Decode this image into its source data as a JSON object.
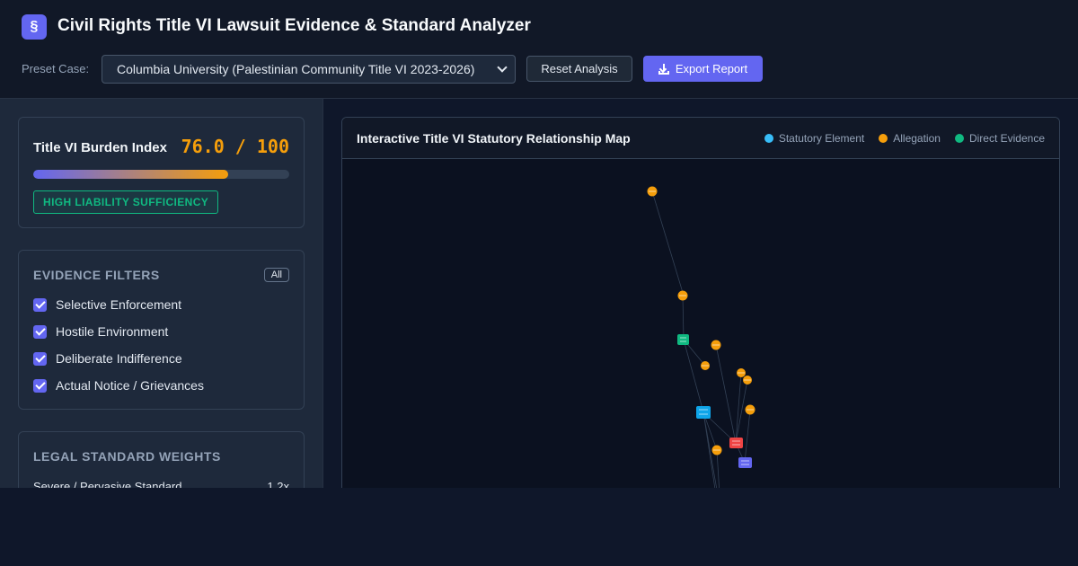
{
  "header": {
    "logo_glyph": "§",
    "title": "Civil Rights Title VI Lawsuit Evidence & Standard Analyzer",
    "preset_label": "Preset Case:",
    "preset_value": "Columbia University (Palestinian Community Title VI 2023-2026)",
    "reset_label": "Reset Analysis",
    "export_label": "Export Report"
  },
  "burden": {
    "label": "Title VI Burden Index",
    "value": "76.0 / 100",
    "progress": 0.76,
    "badge": "HIGH LIABILITY SUFFICIENCY"
  },
  "filters": {
    "title": "EVIDENCE FILTERS",
    "all_label": "All",
    "items": [
      {
        "label": "Selective Enforcement",
        "checked": true
      },
      {
        "label": "Hostile Environment",
        "checked": true
      },
      {
        "label": "Deliberate Indifference",
        "checked": true
      },
      {
        "label": "Actual Notice / Grievances",
        "checked": true
      }
    ]
  },
  "weights": {
    "title": "LEGAL STANDARD WEIGHTS",
    "items": [
      {
        "label": "Severe / Pervasive Standard",
        "value": "1.2x"
      }
    ]
  },
  "map": {
    "title": "Interactive Title VI Statutory Relationship Map",
    "legend": [
      {
        "label": "Statutory Element",
        "color": "#38bdf8"
      },
      {
        "label": "Allegation",
        "color": "#f59e0b"
      },
      {
        "label": "Direct Evidence",
        "color": "#10b981"
      }
    ]
  },
  "colors": {
    "accent": "#6366f1",
    "warning": "#f59e0b",
    "success": "#10b981"
  }
}
